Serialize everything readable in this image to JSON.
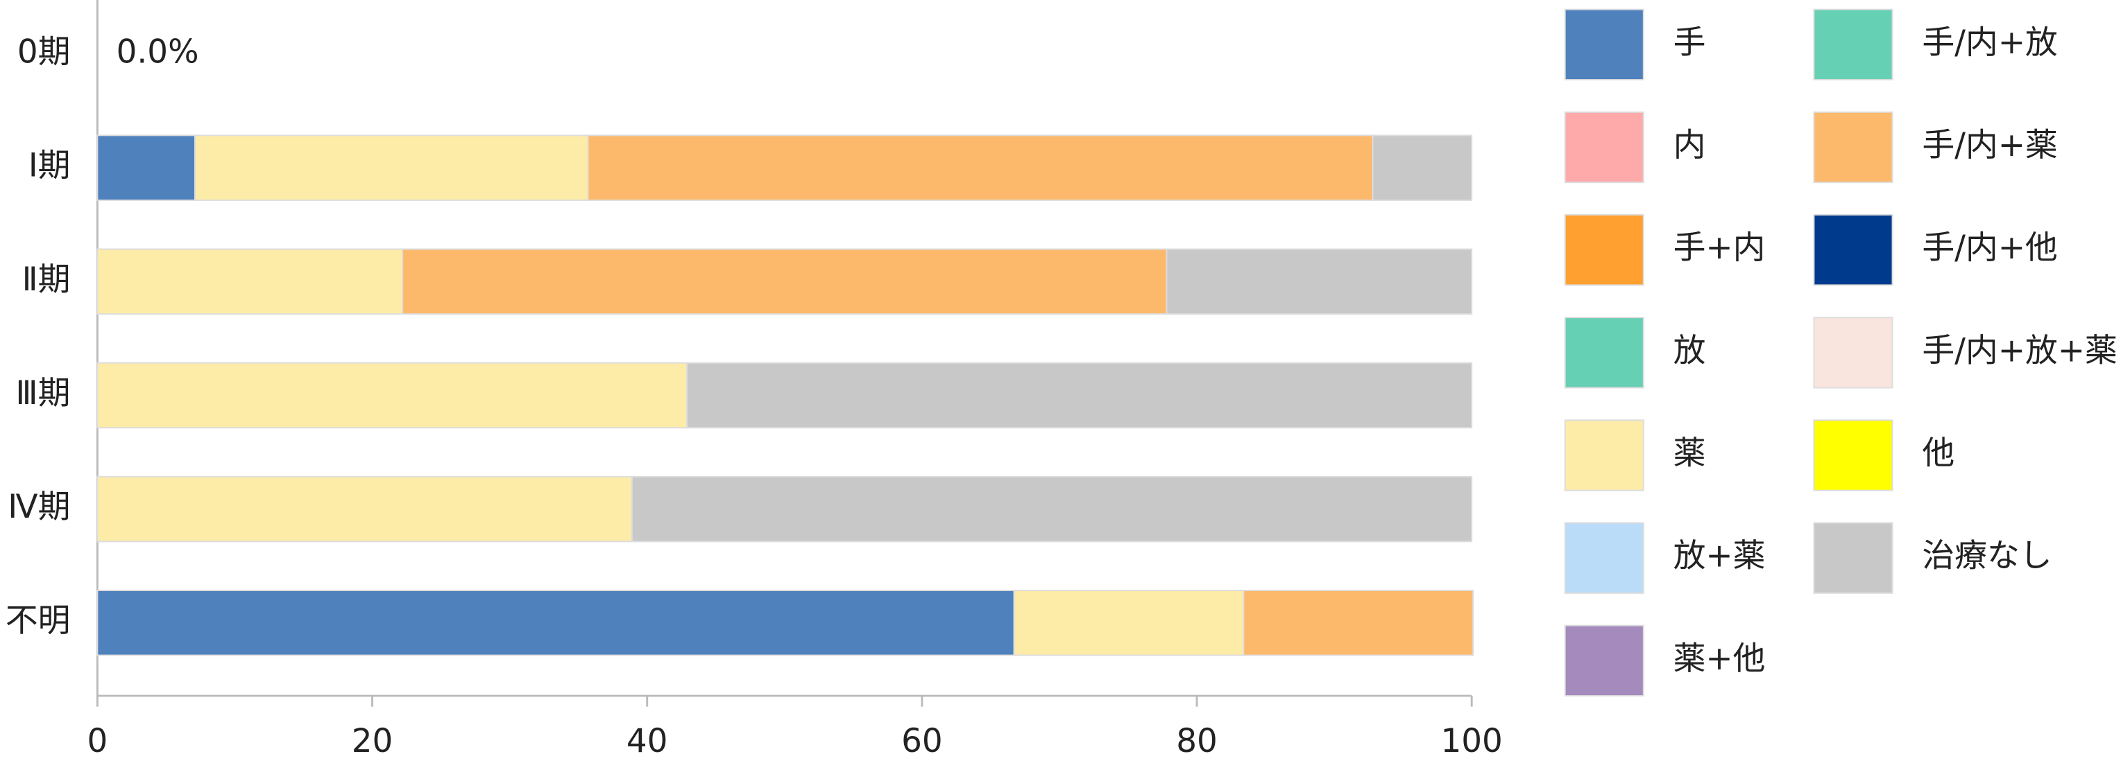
{
  "chart_data": {
    "type": "stacked-barh",
    "categories": [
      "0期",
      "Ⅰ期",
      "Ⅱ期",
      "Ⅲ期",
      "Ⅳ期",
      "不明"
    ],
    "annotation": "0.0%",
    "series": [
      {
        "name": "手",
        "color": "#4f81bd",
        "values": [
          0,
          7.1,
          0,
          0,
          0,
          66.7
        ]
      },
      {
        "name": "内",
        "color": "#ffaaaa",
        "values": [
          0,
          0,
          0,
          0,
          0,
          0
        ]
      },
      {
        "name": "手+内",
        "color": "#ffa030",
        "values": [
          0,
          0,
          0,
          0,
          0,
          0
        ]
      },
      {
        "name": "放",
        "color": "#66d0b4",
        "values": [
          0,
          0,
          0,
          0,
          0,
          0
        ]
      },
      {
        "name": "薬",
        "color": "#fdeba8",
        "values": [
          0,
          28.6,
          22.2,
          42.9,
          38.9,
          16.7
        ]
      },
      {
        "name": "放+薬",
        "color": "#bbdcf8",
        "values": [
          0,
          0,
          0,
          0,
          0,
          0
        ]
      },
      {
        "name": "薬+他",
        "color": "#a48abd",
        "values": [
          0,
          0,
          0,
          0,
          0,
          0
        ]
      },
      {
        "name": "手/内+放",
        "color": "#66d0b4",
        "values": [
          0,
          0,
          0,
          0,
          0,
          0
        ]
      },
      {
        "name": "手/内+薬",
        "color": "#fdb96b",
        "values": [
          0,
          57.1,
          55.6,
          0,
          0,
          16.7
        ]
      },
      {
        "name": "手/内+他",
        "color": "#003a8c",
        "values": [
          0,
          0,
          0,
          0,
          0,
          0
        ]
      },
      {
        "name": "手/内+放+薬",
        "color": "#f9e4de",
        "values": [
          0,
          0,
          0,
          0,
          0,
          0
        ]
      },
      {
        "name": "他",
        "color": "#ffff00",
        "values": [
          0,
          0,
          0,
          0,
          0,
          0
        ]
      },
      {
        "name": "治療なし",
        "color": "#c8c8c8",
        "values": [
          0,
          7.2,
          22.2,
          57.1,
          61.1,
          0
        ]
      }
    ],
    "xlim": [
      0,
      100
    ],
    "xticks": [
      0,
      20,
      40,
      60,
      80,
      100
    ]
  }
}
